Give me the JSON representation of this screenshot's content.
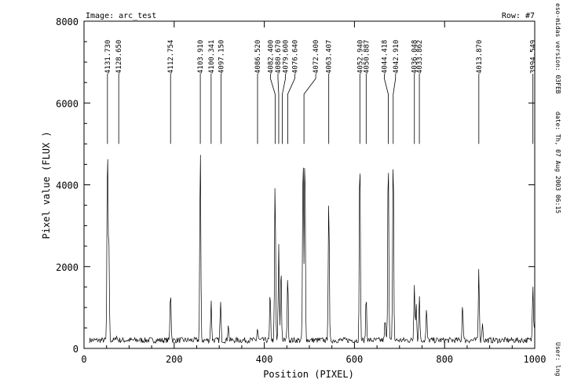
{
  "header": {
    "image_label": "Image: arc_test",
    "row_label": "Row: #7"
  },
  "side": {
    "version": "eso-midas version: 03FEB",
    "date": "date: Th, 07 Aug 2003 06:15",
    "user": "User: lng"
  },
  "chart_data": {
    "type": "line",
    "title": "",
    "xlabel": "Position (PIXEL)",
    "ylabel": "Pixel value (FLUX )",
    "xlim": [
      0,
      1000
    ],
    "ylim": [
      0,
      8000
    ],
    "xticks": [
      0,
      200,
      400,
      600,
      800,
      1000
    ],
    "yticks": [
      0,
      2000,
      4000,
      6000,
      8000
    ],
    "baseline": 200,
    "peaks": [
      {
        "x": 52,
        "y": 5000
      },
      {
        "x": 55,
        "y": 2700
      },
      {
        "x": 72,
        "y": 330
      },
      {
        "x": 192,
        "y": 1450
      },
      {
        "x": 258,
        "y": 5000
      },
      {
        "x": 282,
        "y": 1150
      },
      {
        "x": 303,
        "y": 1120
      },
      {
        "x": 320,
        "y": 600
      },
      {
        "x": 385,
        "y": 500
      },
      {
        "x": 413,
        "y": 1350
      },
      {
        "x": 424,
        "y": 4150
      },
      {
        "x": 432,
        "y": 2500
      },
      {
        "x": 437,
        "y": 2050
      },
      {
        "x": 452,
        "y": 1800
      },
      {
        "x": 486,
        "y": 5000
      },
      {
        "x": 490,
        "y": 5000
      },
      {
        "x": 543,
        "y": 3750
      },
      {
        "x": 612,
        "y": 5000
      },
      {
        "x": 626,
        "y": 1300
      },
      {
        "x": 668,
        "y": 700
      },
      {
        "x": 675,
        "y": 5000
      },
      {
        "x": 686,
        "y": 5000
      },
      {
        "x": 733,
        "y": 1600
      },
      {
        "x": 737,
        "y": 1100
      },
      {
        "x": 744,
        "y": 1300
      },
      {
        "x": 760,
        "y": 950
      },
      {
        "x": 840,
        "y": 1150
      },
      {
        "x": 876,
        "y": 1950
      },
      {
        "x": 884,
        "y": 650
      },
      {
        "x": 996,
        "y": 1600
      },
      {
        "x": 1000,
        "y": 700
      }
    ],
    "line_ids": [
      {
        "label": "4131.730",
        "x": 52
      },
      {
        "label": "4128.650",
        "x": 77
      },
      {
        "label": "4112.754",
        "x": 192
      },
      {
        "label": "4103.910",
        "x": 258
      },
      {
        "label": "4100.341",
        "x": 282
      },
      {
        "label": "4097.150",
        "x": 304
      },
      {
        "label": "4086.520",
        "x": 385
      },
      {
        "label": "4082.400",
        "x": 424
      },
      {
        "label": "4080.670",
        "x": 432
      },
      {
        "label": "4079.600",
        "x": 440
      },
      {
        "label": "4076.640",
        "x": 452
      },
      {
        "label": "4072.400",
        "x": 488
      },
      {
        "label": "4063.407",
        "x": 543
      },
      {
        "label": "4052.940",
        "x": 612
      },
      {
        "label": "4050.887",
        "x": 626
      },
      {
        "label": "4044.418",
        "x": 675
      },
      {
        "label": "4042.910",
        "x": 686
      },
      {
        "label": "4036.048",
        "x": 733
      },
      {
        "label": "4033.862",
        "x": 744
      },
      {
        "label": "4013.870",
        "x": 876
      },
      {
        "label": "3994.549",
        "x": 996
      }
    ]
  }
}
